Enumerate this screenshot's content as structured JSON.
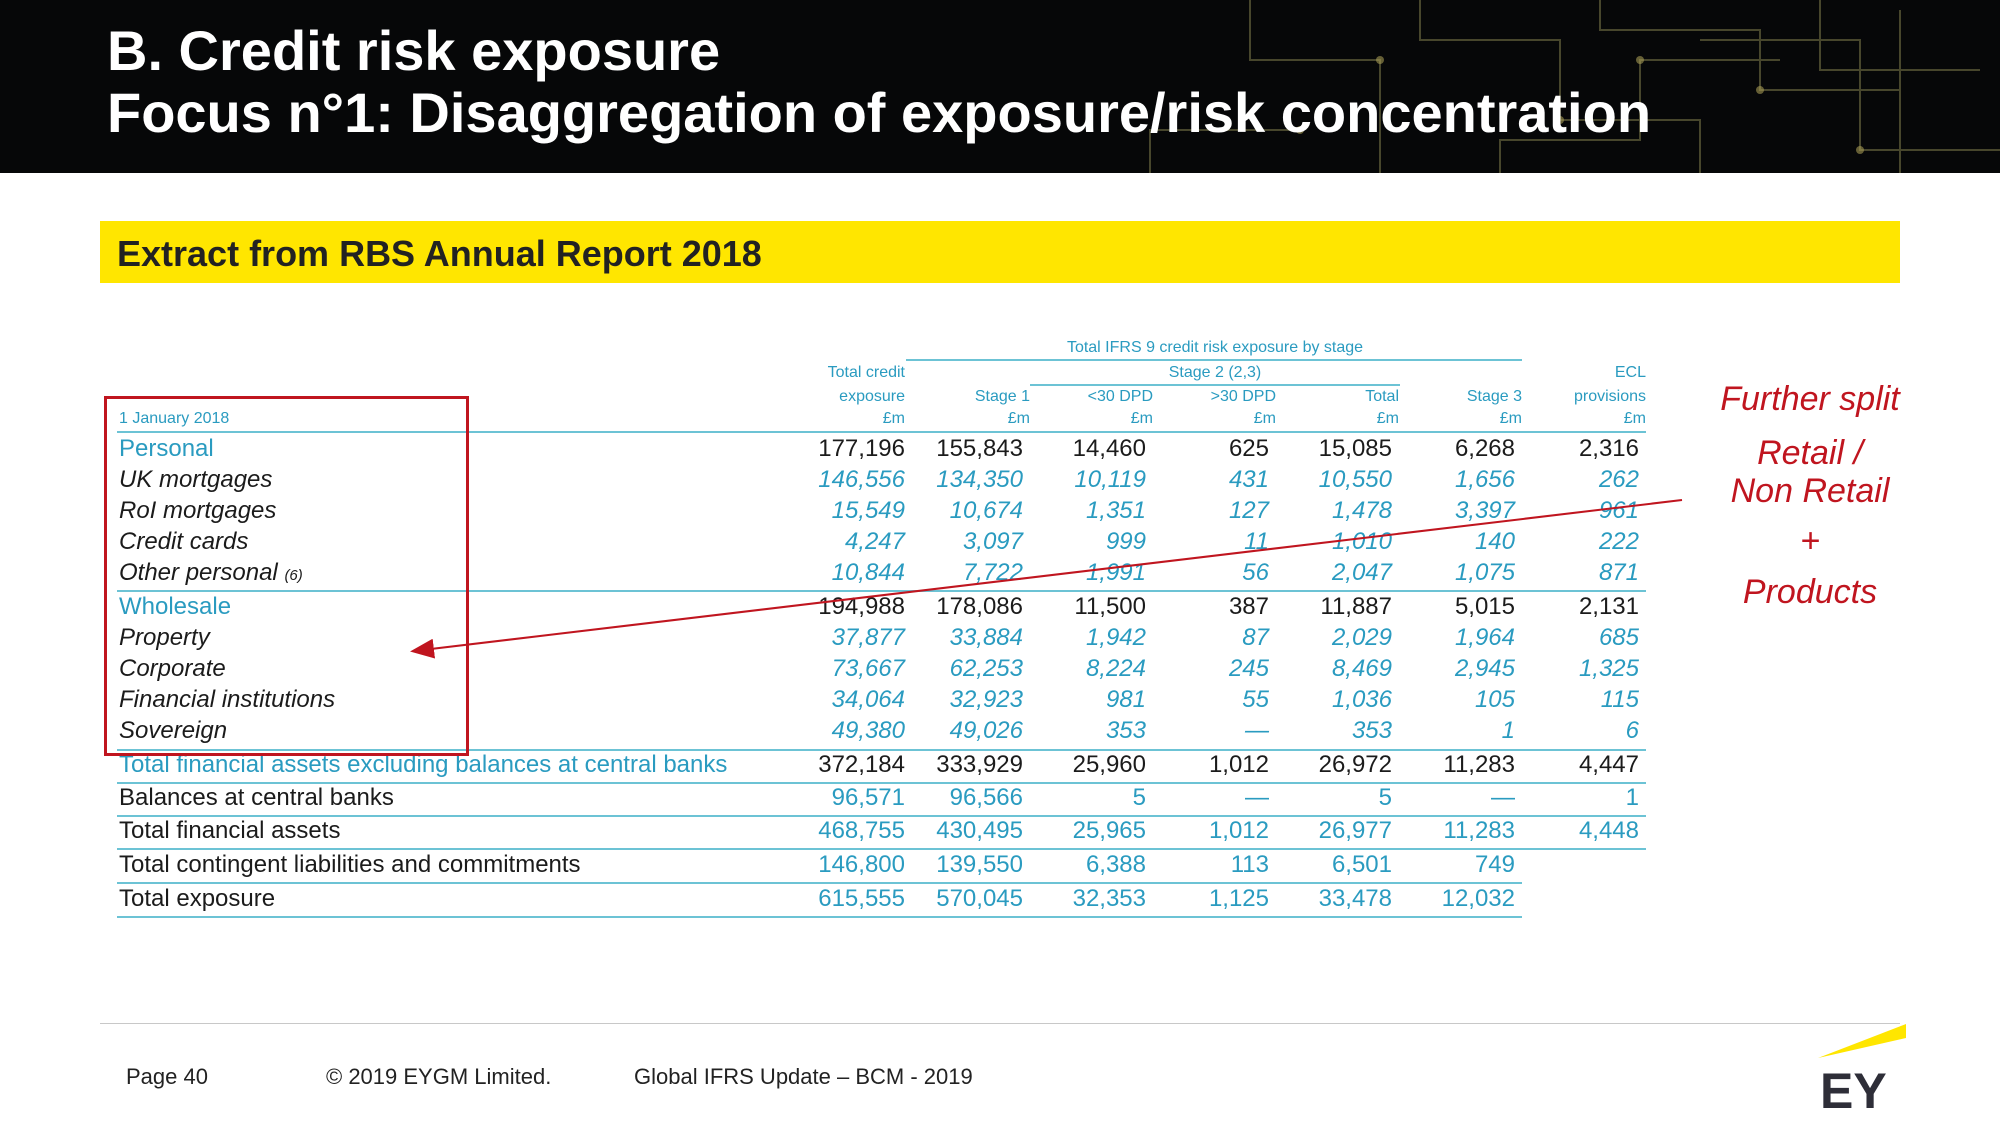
{
  "header": {
    "title_line1": "B. Credit risk exposure",
    "title_line2": "Focus n°1: Disaggregation of exposure/risk concentration"
  },
  "banner": {
    "text": "Extract from RBS Annual Report 2018"
  },
  "table": {
    "group_header": "Total IFRS 9 credit risk exposure by stage",
    "stage2_header": "Stage 2 (2,3)",
    "date_label": "1 January 2018",
    "col_total_credit": [
      "Total credit",
      "exposure",
      "£m"
    ],
    "col_stage1": [
      "Stage 1",
      "£m"
    ],
    "col_lt30": [
      "<30 DPD",
      "£m"
    ],
    "col_gt30": [
      ">30 DPD",
      "£m"
    ],
    "col_total": [
      "Total",
      "£m"
    ],
    "col_stage3": [
      "Stage 3",
      "£m"
    ],
    "col_ecl": [
      "ECL",
      "provisions",
      "£m"
    ],
    "rows": [
      {
        "label": "Personal",
        "note": "",
        "values": [
          "177,196",
          "155,843",
          "14,460",
          "625",
          "15,085",
          "6,268",
          "2,316"
        ]
      },
      {
        "label": "UK mortgages",
        "note": "",
        "values": [
          "146,556",
          "134,350",
          "10,119",
          "431",
          "10,550",
          "1,656",
          "262"
        ]
      },
      {
        "label": "RoI mortgages",
        "note": "",
        "values": [
          "15,549",
          "10,674",
          "1,351",
          "127",
          "1,478",
          "3,397",
          "961"
        ]
      },
      {
        "label": "Credit cards",
        "note": "",
        "values": [
          "4,247",
          "3,097",
          "999",
          "11",
          "1,010",
          "140",
          "222"
        ]
      },
      {
        "label": "Other personal",
        "note": "(6)",
        "values": [
          "10,844",
          "7,722",
          "1,991",
          "56",
          "2,047",
          "1,075",
          "871"
        ]
      },
      {
        "label": "Wholesale",
        "note": "",
        "values": [
          "194,988",
          "178,086",
          "11,500",
          "387",
          "11,887",
          "5,015",
          "2,131"
        ]
      },
      {
        "label": "Property",
        "note": "",
        "values": [
          "37,877",
          "33,884",
          "1,942",
          "87",
          "2,029",
          "1,964",
          "685"
        ]
      },
      {
        "label": "Corporate",
        "note": "",
        "values": [
          "73,667",
          "62,253",
          "8,224",
          "245",
          "8,469",
          "2,945",
          "1,325"
        ]
      },
      {
        "label": "Financial institutions",
        "note": "",
        "values": [
          "34,064",
          "32,923",
          "981",
          "55",
          "1,036",
          "105",
          "115"
        ]
      },
      {
        "label": "Sovereign",
        "note": "",
        "values": [
          "49,380",
          "49,026",
          "353",
          "—",
          "353",
          "1",
          "6"
        ]
      },
      {
        "label": "Total financial assets excluding balances at central banks",
        "note": "",
        "values": [
          "372,184",
          "333,929",
          "25,960",
          "1,012",
          "26,972",
          "11,283",
          "4,447"
        ]
      },
      {
        "label": "Balances at central banks",
        "note": "",
        "values": [
          "96,571",
          "96,566",
          "5",
          "—",
          "5",
          "—",
          "1"
        ]
      },
      {
        "label": "Total financial assets",
        "note": "",
        "values": [
          "468,755",
          "430,495",
          "25,965",
          "1,012",
          "26,977",
          "11,283",
          "4,448"
        ]
      },
      {
        "label": "Total contingent liabilities and commitments",
        "note": "",
        "values": [
          "146,800",
          "139,550",
          "6,388",
          "113",
          "6,501",
          "749",
          ""
        ]
      },
      {
        "label": "Total exposure",
        "note": "",
        "values": [
          "615,555",
          "570,045",
          "32,353",
          "1,125",
          "33,478",
          "12,032",
          ""
        ]
      }
    ]
  },
  "annotation": {
    "line1": "Further split",
    "line2": "Retail /",
    "line3": "Non Retail",
    "line4": "+",
    "line5": "Products",
    "color": "#c0151f"
  },
  "footer": {
    "page": "Page 40",
    "copyright": "© 2019 EYGM Limited.",
    "event": "Global IFRS Update – BCM - 2019",
    "logo_text": "EY"
  },
  "colors": {
    "accent_yellow": "#ffe600",
    "table_teal": "#2a9bc0",
    "annotation_red": "#c0151f"
  }
}
